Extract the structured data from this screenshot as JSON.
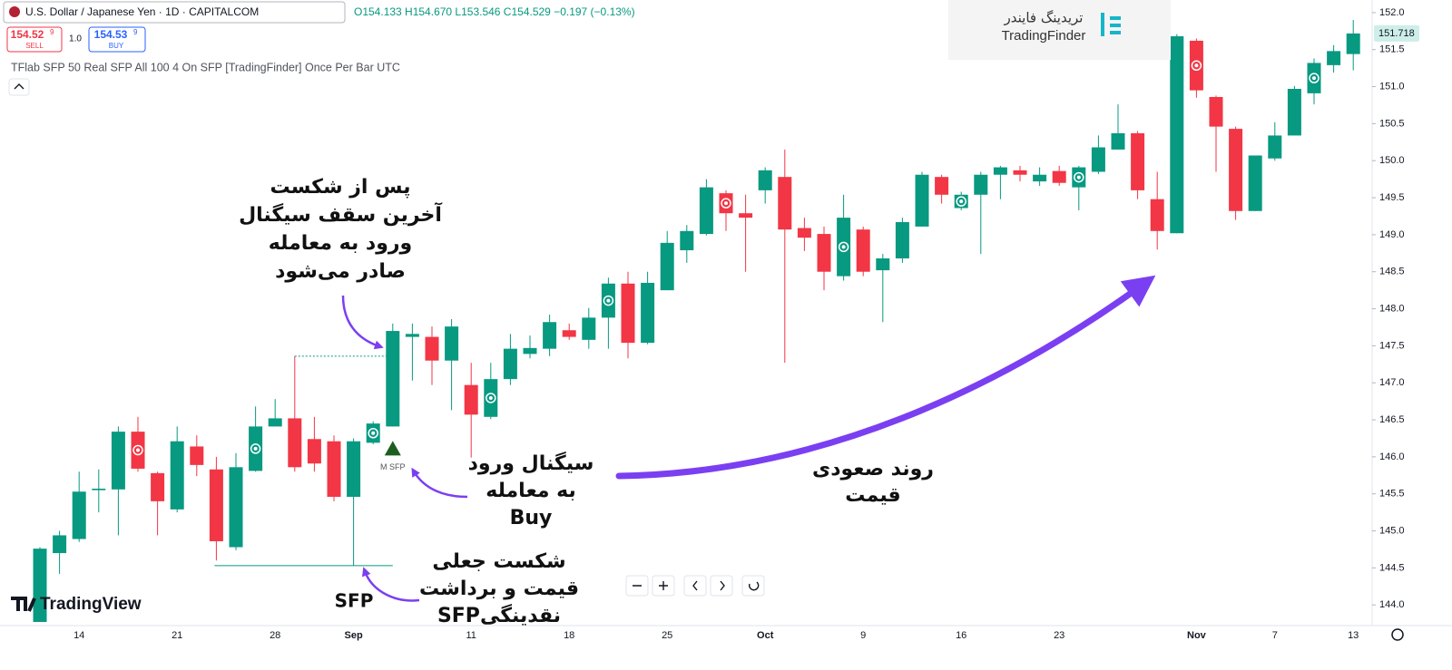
{
  "header": {
    "symbol": "U.S. Dollar / Japanese Yen · 1D · CAPITALCOM",
    "ohlc": "O154.133 H154.670 L153.546 C154.529 −0.197 (−0.13%)",
    "sell_price": "154.52",
    "sell_price_sup": "9",
    "sell_label": "SELL",
    "quantity": "1.0",
    "buy_price": "154.53",
    "buy_price_sup": "9",
    "buy_label": "BUY",
    "indicator": "TFlab SFP 50 Real SFP All 100 4 On SFP [TradingFinder] Once Per Bar UTC"
  },
  "logo": {
    "fa": "تریدینگ فایندر",
    "en": "TradingFinder"
  },
  "watermark": "TradingView",
  "annotations": {
    "breakout": [
      "پس از شکست",
      "آخرین سقف سیگنال",
      "ورود به معامله",
      "صادر می‌شود"
    ],
    "signal": [
      "سیگنال ورود",
      "به معامله",
      "Buy"
    ],
    "fake": [
      "شکست جعلی",
      "قیمت و برداشت",
      "نقدینگیSFP"
    ],
    "trend": [
      "روند صعودی",
      "قیمت"
    ],
    "sfp": "SFP",
    "msfp": "M SFP"
  },
  "chart_data": {
    "type": "candlestick",
    "categories": [
      null,
      null,
      "14",
      null,
      null,
      null,
      null,
      "21",
      null,
      null,
      null,
      null,
      "28",
      null,
      null,
      null,
      "Sep",
      null,
      null,
      null,
      null,
      null,
      "11",
      null,
      null,
      null,
      null,
      "18",
      null,
      null,
      null,
      null,
      "25",
      null,
      null,
      null,
      null,
      "Oct",
      null,
      null,
      null,
      null,
      "9",
      null,
      null,
      null,
      null,
      "16",
      null,
      null,
      null,
      null,
      "23",
      null,
      null,
      null,
      null,
      null,
      null,
      "Nov",
      null,
      null,
      null,
      "7",
      null,
      null,
      null,
      "13"
    ],
    "open": [
      143.77,
      144.7,
      144.89,
      145.55,
      145.56,
      146.34,
      145.78,
      145.29,
      146.14,
      145.83,
      144.78,
      145.81,
      146.41,
      146.52,
      146.24,
      146.21,
      145.46,
      146.19,
      146.41,
      147.62,
      147.62,
      147.3,
      146.97,
      146.54,
      147.05,
      147.39,
      147.46,
      147.71,
      147.58,
      147.88,
      148.34,
      147.54,
      148.25,
      148.79,
      149.01,
      149.56,
      149.29,
      149.6,
      149.78,
      149.09,
      149.01,
      148.44,
      149.07,
      148.52,
      148.68,
      149.11,
      149.78,
      149.36,
      149.54,
      149.81,
      149.87,
      149.72,
      149.86,
      149.64,
      149.85,
      150.15,
      150.37,
      149.48,
      149.02,
      151.62,
      150.86,
      150.43,
      149.32,
      150.03,
      150.34,
      150.91,
      151.29,
      151.44
    ],
    "high": [
      144.78,
      145.0,
      145.8,
      145.83,
      146.41,
      146.54,
      145.8,
      146.41,
      146.29,
      146.0,
      146.05,
      146.68,
      146.78,
      147.36,
      146.54,
      146.29,
      146.25,
      146.48,
      147.8,
      147.8,
      147.76,
      147.86,
      147.27,
      147.27,
      147.66,
      147.64,
      147.92,
      147.8,
      148.01,
      148.42,
      148.5,
      148.5,
      149.05,
      149.13,
      149.75,
      149.6,
      149.54,
      149.91,
      150.15,
      149.23,
      149.11,
      149.54,
      149.11,
      148.74,
      149.23,
      149.85,
      149.81,
      149.58,
      149.85,
      149.93,
      149.93,
      149.91,
      149.93,
      149.93,
      150.34,
      150.76,
      150.4,
      149.85,
      151.71,
      151.65,
      150.88,
      150.46,
      150.07,
      150.52,
      151.01,
      151.38,
      151.56,
      151.9
    ],
    "low": [
      143.77,
      144.42,
      144.85,
      145.25,
      144.94,
      145.8,
      144.94,
      145.25,
      145.74,
      144.6,
      144.74,
      145.8,
      146.41,
      145.8,
      145.8,
      145.4,
      144.53,
      146.17,
      146.41,
      147.03,
      146.97,
      146.63,
      145.99,
      146.51,
      146.97,
      147.33,
      147.36,
      147.58,
      147.46,
      147.46,
      147.33,
      147.52,
      148.25,
      148.62,
      148.99,
      149.05,
      148.5,
      149.42,
      147.27,
      148.78,
      148.25,
      148.38,
      148.44,
      147.82,
      148.62,
      149.11,
      149.42,
      149.33,
      148.74,
      149.48,
      149.72,
      149.66,
      149.66,
      149.33,
      149.82,
      150.15,
      149.48,
      148.8,
      149.02,
      150.85,
      149.85,
      149.2,
      149.32,
      150.0,
      150.34,
      150.76,
      151.19,
      151.22
    ],
    "close": [
      144.76,
      144.94,
      145.53,
      145.57,
      146.34,
      145.84,
      145.4,
      146.21,
      145.89,
      144.86,
      145.86,
      146.41,
      146.52,
      145.86,
      145.91,
      145.46,
      146.21,
      146.45,
      147.7,
      147.66,
      147.3,
      147.76,
      146.57,
      147.05,
      147.46,
      147.47,
      147.82,
      147.62,
      147.88,
      148.34,
      147.54,
      148.35,
      148.89,
      149.05,
      149.64,
      149.29,
      149.23,
      149.87,
      149.07,
      148.96,
      148.5,
      149.23,
      148.5,
      148.68,
      149.17,
      149.81,
      149.54,
      149.54,
      149.81,
      149.91,
      149.81,
      149.81,
      149.7,
      149.91,
      150.18,
      150.37,
      149.6,
      149.05,
      151.68,
      150.95,
      150.46,
      149.32,
      150.07,
      150.34,
      150.97,
      151.32,
      151.48,
      151.718
    ],
    "up_color": "#089981",
    "down_color": "#f23645",
    "ylim": [
      143.77,
      152.17
    ],
    "yticks": [
      {
        "value": 144,
        "label": "144.0"
      },
      144.5,
      {
        "value": 145,
        "label": "145.0"
      },
      145.5,
      {
        "value": 146,
        "label": "146.0"
      },
      146.5,
      {
        "value": 147,
        "label": "147.0"
      },
      147.5,
      {
        "value": 148,
        "label": "148.0"
      },
      148.5,
      {
        "value": 149,
        "label": "149.0"
      },
      149.5,
      {
        "value": 150,
        "label": "150.0"
      },
      150.5,
      {
        "value": 151,
        "label": "151.0"
      },
      151.5,
      {
        "value": 152,
        "label": "152.0"
      }
    ],
    "grid": false
  }
}
